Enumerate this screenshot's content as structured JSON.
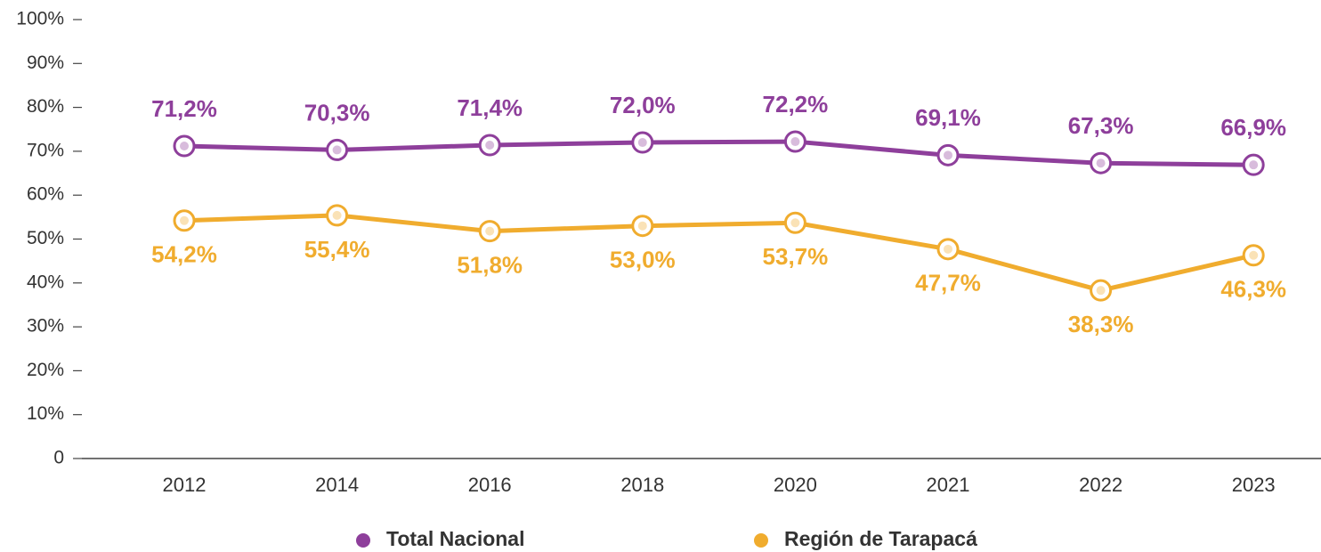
{
  "chart_data": {
    "type": "line",
    "categories": [
      "2012",
      "2014",
      "2016",
      "2018",
      "2020",
      "2021",
      "2022",
      "2023"
    ],
    "series": [
      {
        "name": "Total Nacional",
        "color": "#8e3f9b",
        "values": [
          71.2,
          70.3,
          71.4,
          72.0,
          72.2,
          69.1,
          67.3,
          66.9
        ],
        "value_labels": [
          "71,2%",
          "70,3%",
          "71,4%",
          "72,0%",
          "72,2%",
          "69,1%",
          "67,3%",
          "66,9%"
        ]
      },
      {
        "name": "Región de Tarapacá",
        "color": "#f0ac2e",
        "values": [
          54.2,
          55.4,
          51.8,
          53.0,
          53.7,
          47.7,
          38.3,
          46.3
        ],
        "value_labels": [
          "54,2%",
          "55,4%",
          "51,8%",
          "53,0%",
          "53,7%",
          "47,7%",
          "38,3%",
          "46,3%"
        ]
      }
    ],
    "ylim": [
      0,
      100
    ],
    "yticks": [
      0,
      {
        "value": 10,
        "label": "10%"
      },
      {
        "value": 20,
        "label": "20%"
      },
      {
        "value": 30,
        "label": "30%"
      },
      {
        "value": 40,
        "label": "40%"
      },
      {
        "value": 50,
        "label": "50%"
      },
      {
        "value": 60,
        "label": "60%"
      },
      {
        "value": 70,
        "label": "70%"
      },
      {
        "value": 80,
        "label": "80%"
      },
      {
        "value": 90,
        "label": "90%"
      },
      {
        "value": 100,
        "label": "100%"
      }
    ],
    "legend": "bottom"
  }
}
